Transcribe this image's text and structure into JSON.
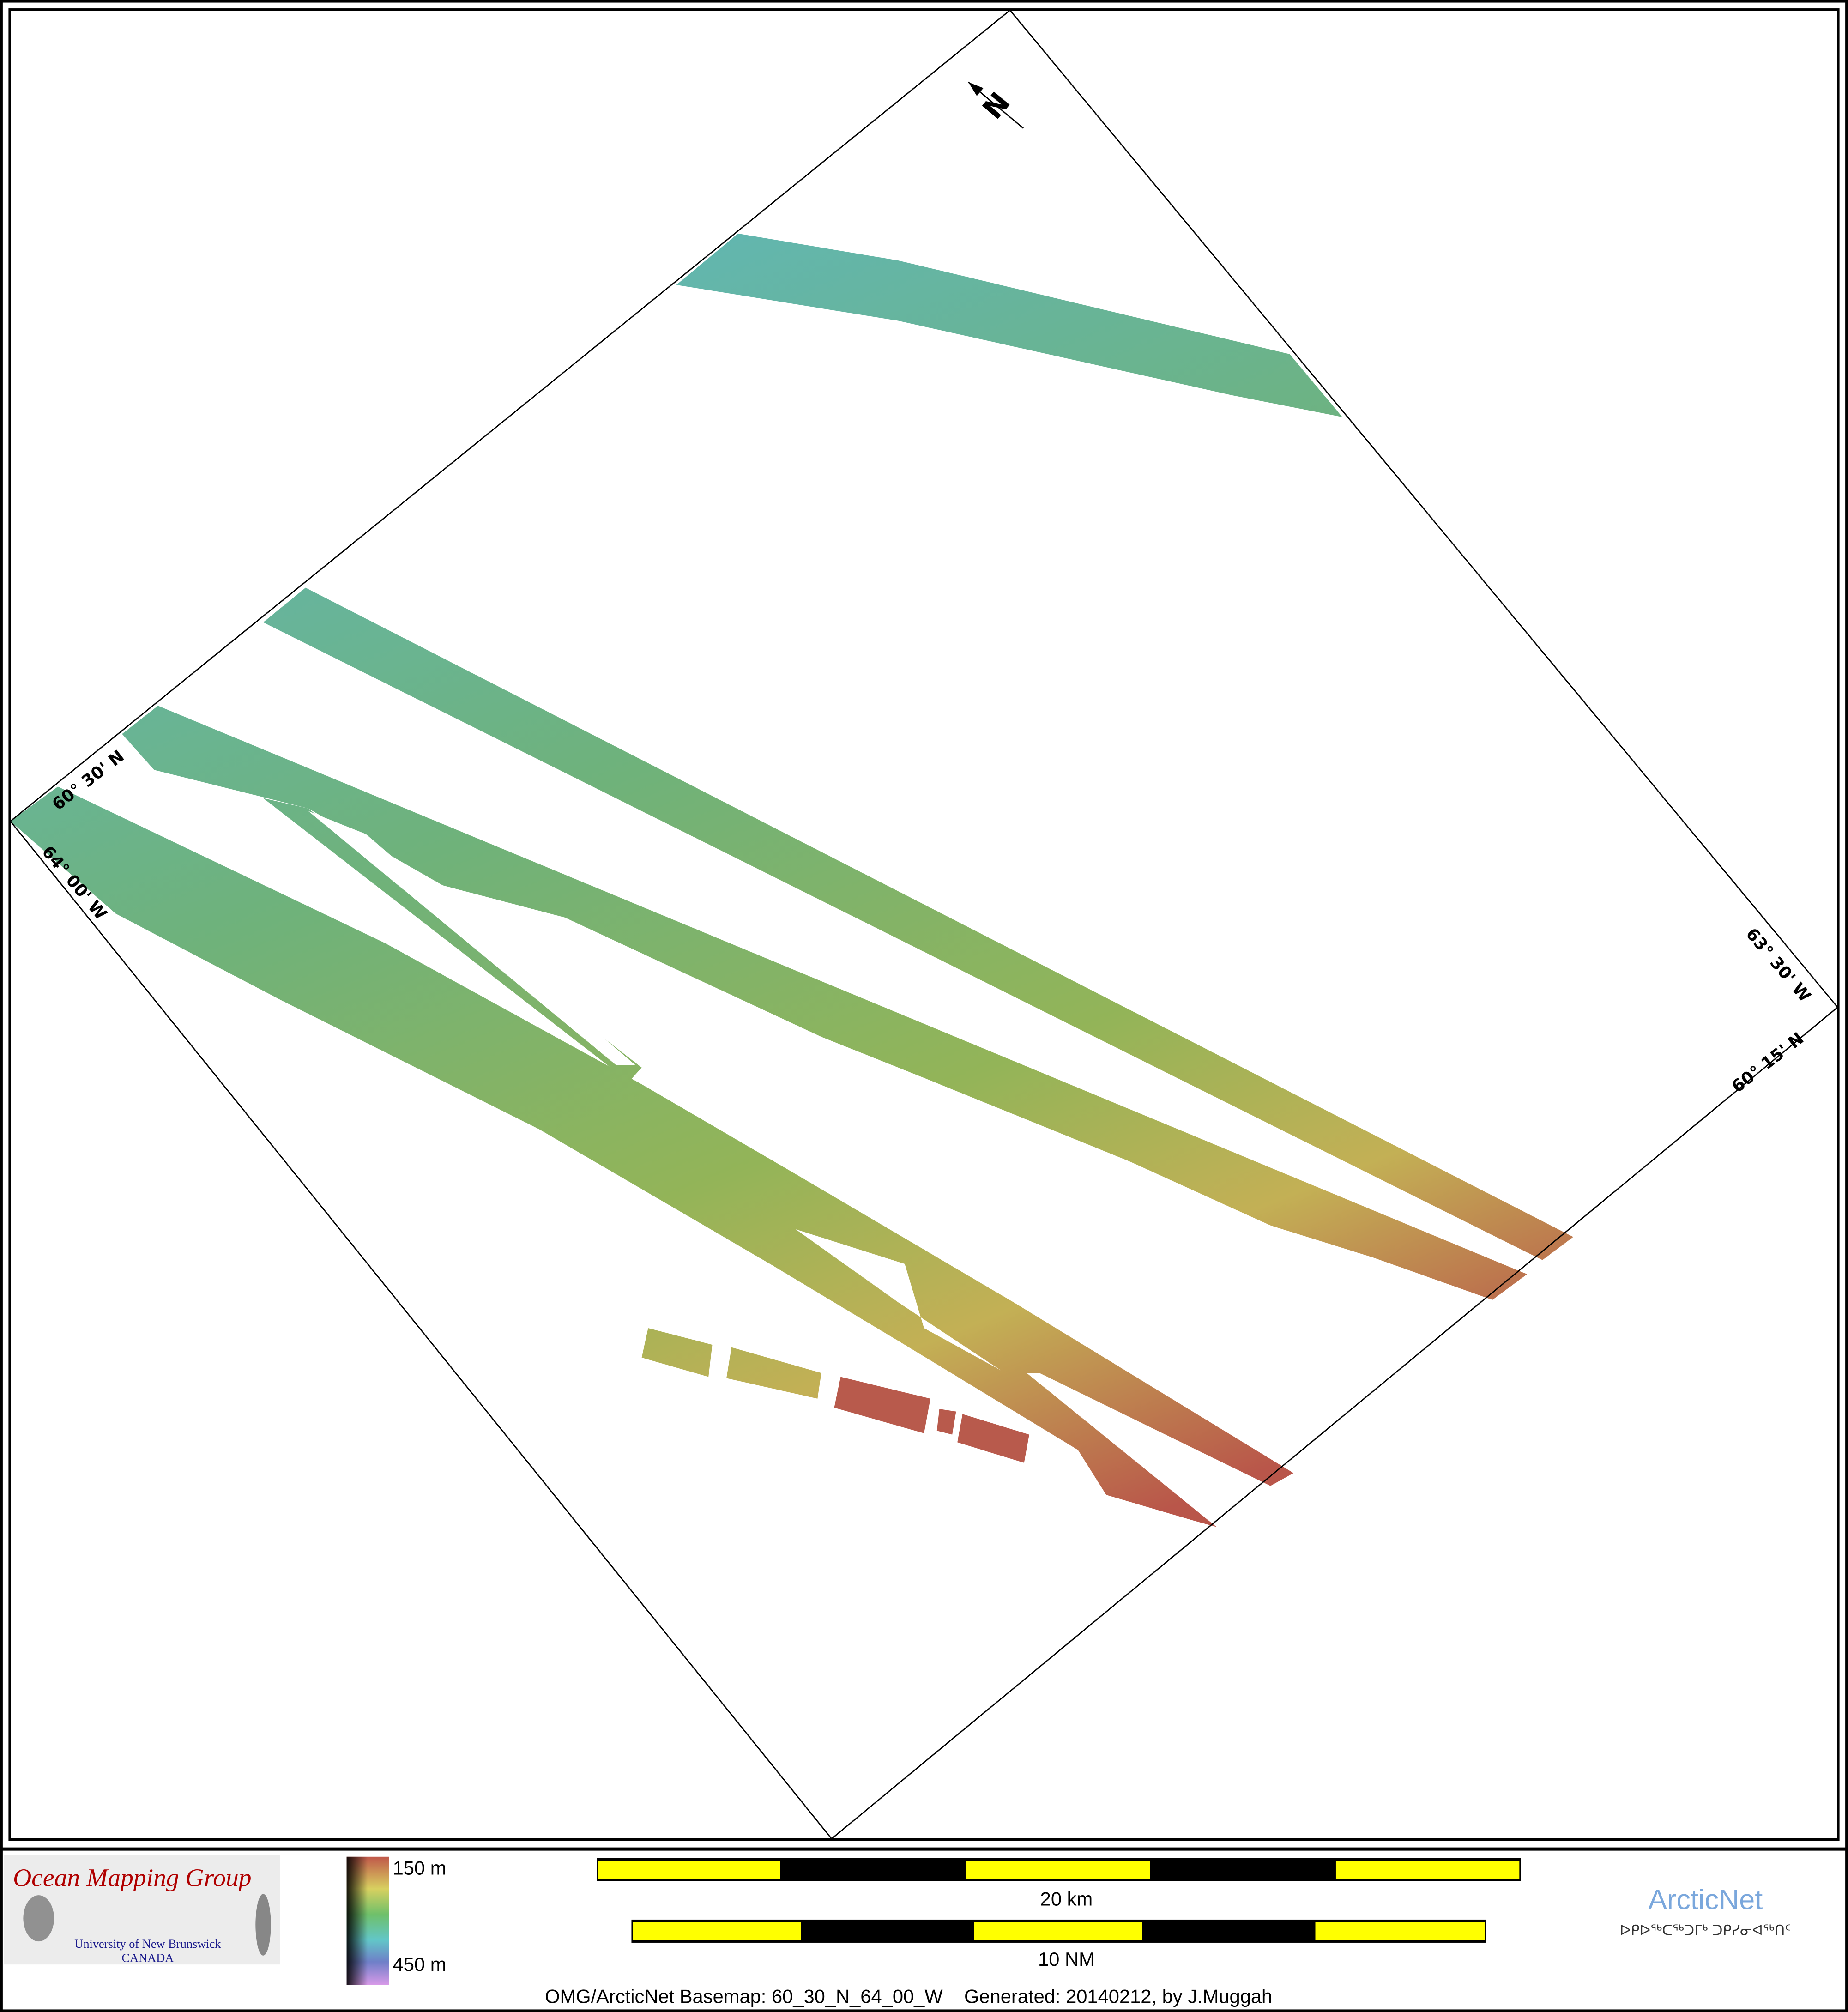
{
  "map": {
    "north_arrow_label": "N",
    "graticule_labels": {
      "lat_top_left": "60° 30' N",
      "lon_left": "64° 00' W",
      "lon_right": "63° 30' W",
      "lat_bottom_right": "60° 15' N"
    },
    "depth_colors": [
      "#c0584a",
      "#b9b250",
      "#7dbb6a",
      "#62b6b0",
      "#5f8fc0",
      "#c98be0"
    ]
  },
  "footer": {
    "logo_left": {
      "title": "Ocean Mapping Group",
      "line1": "University of New Brunswick",
      "line2": "CANADA"
    },
    "colorbar": {
      "top_label": "150 m",
      "bottom_label": "450 m"
    },
    "scalebar_km": {
      "label": "20 km"
    },
    "scalebar_nm": {
      "label": "10 NM"
    },
    "caption": "OMG/ArcticNet Basemap: 60_30_N_64_00_W    Generated: 20140212, by J.Muggah",
    "logo_right": {
      "title": "ArcticNet",
      "syllabics": "ᐅᑭᐅᖅᑕᖅᑐᒥᒃ ᑐᑭᓯᓂᐊᖅᑎᑦ"
    },
    "colors": {
      "yellow": "#ffff00",
      "black": "#000000",
      "omg_red": "#b00000",
      "unb_blue": "#1a1a8c",
      "arcticnet_blue": "#7aa7dc"
    }
  }
}
